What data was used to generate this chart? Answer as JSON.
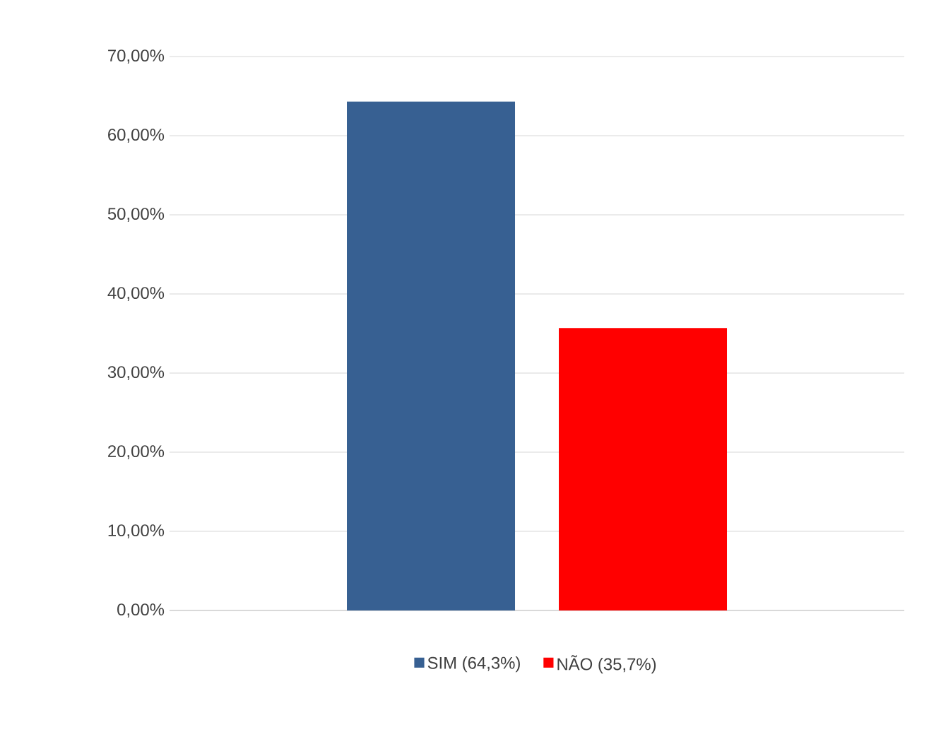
{
  "chart_data": {
    "type": "bar",
    "categories": [
      null
    ],
    "series": [
      {
        "name": "SIM (64,3%)",
        "color": "#376092",
        "values": [
          64.3
        ]
      },
      {
        "name": "NÃO (35,7%)",
        "color": "#ff0000",
        "values": [
          35.7
        ]
      }
    ],
    "ylim": [
      0,
      70
    ],
    "yticks": [
      {
        "value": 0,
        "label": "0,00%"
      },
      {
        "value": 10,
        "label": "10,00%"
      },
      {
        "value": 20,
        "label": "20,00%"
      },
      {
        "value": 30,
        "label": "30,00%"
      },
      {
        "value": 40,
        "label": "40,00%"
      },
      {
        "value": 50,
        "label": "50,00%"
      },
      {
        "value": 60,
        "label": "60,00%"
      },
      {
        "value": 70,
        "label": "70,00%"
      }
    ],
    "grid": "y",
    "legend": "bottom"
  }
}
